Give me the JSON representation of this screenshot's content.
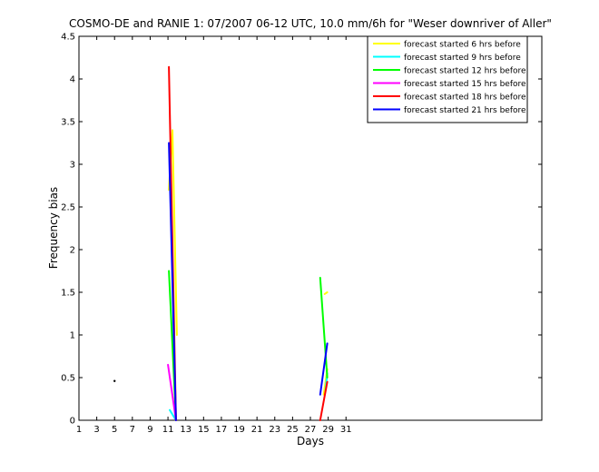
{
  "chart_data": {
    "type": "line",
    "title": "COSMO-DE and RANIE 1: 07/2007 06-12 UTC, 10.0 mm/6h for \"Weser downriver of Aller\"",
    "xlabel": "Days",
    "ylabel": "Frequency bias",
    "xlim": [
      1,
      53
    ],
    "ylim": [
      0,
      4.5
    ],
    "xticks": [
      1,
      3,
      5,
      7,
      9,
      11,
      13,
      15,
      17,
      19,
      21,
      23,
      25,
      27,
      29,
      31
    ],
    "yticks": [
      0,
      0.5,
      1,
      1.5,
      2,
      2.5,
      3,
      3.5,
      4,
      4.5
    ],
    "ytick_labels": [
      "0",
      "0.5",
      "1",
      "1.5",
      "2",
      "2.5",
      "3",
      "3.5",
      "4",
      "4.5"
    ],
    "legend_position": "top-right",
    "grid": false,
    "series": [
      {
        "name": "forecast started 6 hrs before",
        "color": "#ffff00",
        "segments": [
          [
            [
              11.1,
              2.7
            ],
            [
              11.5,
              3.4
            ],
            [
              12.0,
              1.0
            ]
          ],
          [
            [
              28.6,
              1.48
            ],
            [
              28.9,
              1.5
            ]
          ],
          [
            [
              28.5,
              0.3
            ],
            [
              28.9,
              0.6
            ]
          ]
        ]
      },
      {
        "name": "forecast started 9 hrs before",
        "color": "#00ffff",
        "segments": [
          [
            [
              11.2,
              0.12
            ],
            [
              11.9,
              0.0
            ]
          ],
          [
            [
              28.7,
              0.35
            ],
            [
              28.9,
              0.55
            ]
          ]
        ]
      },
      {
        "name": "forecast started 12 hrs before",
        "color": "#00ff00",
        "segments": [
          [
            [
              11.1,
              1.75
            ],
            [
              11.9,
              0.0
            ]
          ],
          [
            [
              28.1,
              1.67
            ],
            [
              28.9,
              0.5
            ]
          ]
        ]
      },
      {
        "name": "forecast started 15 hrs before",
        "color": "#ff00ff",
        "segments": [
          [
            [
              11.0,
              0.65
            ],
            [
              11.9,
              0.0
            ]
          ]
        ]
      },
      {
        "name": "forecast started 18 hrs before",
        "color": "#ff0000",
        "segments": [
          [
            [
              11.1,
              4.14
            ],
            [
              11.9,
              0.0
            ]
          ],
          [
            [
              28.1,
              0.0
            ],
            [
              28.9,
              0.45
            ]
          ]
        ]
      },
      {
        "name": "forecast started 21 hrs before",
        "color": "#0000ff",
        "segments": [
          [
            [
              11.1,
              3.25
            ],
            [
              11.9,
              0.0
            ]
          ],
          [
            [
              28.1,
              0.3
            ],
            [
              28.9,
              0.9
            ]
          ]
        ]
      }
    ],
    "points": [
      {
        "x": 5,
        "y": 0.46,
        "color": "#000000"
      }
    ]
  }
}
